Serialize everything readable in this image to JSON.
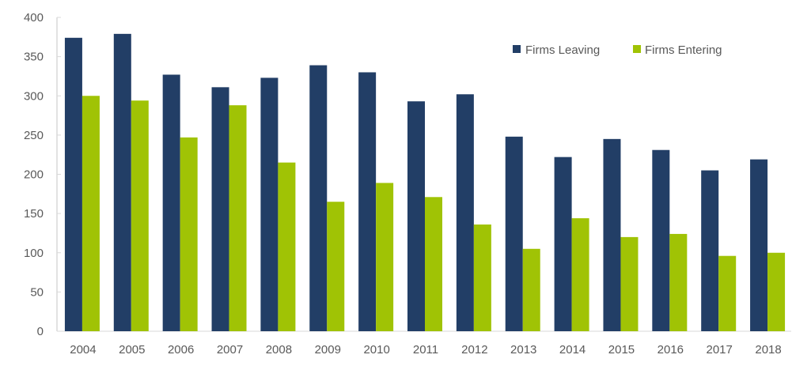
{
  "chart_data": {
    "type": "bar",
    "title": "",
    "xlabel": "",
    "ylabel": "",
    "categories": [
      "2004",
      "2005",
      "2006",
      "2007",
      "2008",
      "2009",
      "2010",
      "2011",
      "2012",
      "2013",
      "2014",
      "2015",
      "2016",
      "2017",
      "2018"
    ],
    "series": [
      {
        "name": "Firms Leaving",
        "color": "#223e66",
        "values": [
          374,
          379,
          327,
          311,
          323,
          339,
          330,
          293,
          302,
          248,
          222,
          245,
          231,
          205,
          219
        ]
      },
      {
        "name": "Firms Entering",
        "color": "#a0c305",
        "values": [
          300,
          294,
          247,
          288,
          215,
          165,
          189,
          171,
          136,
          105,
          144,
          120,
          124,
          96,
          100
        ]
      }
    ],
    "ylim": [
      0,
      400
    ],
    "yticks": [
      0,
      50,
      100,
      150,
      200,
      250,
      300,
      350,
      400
    ],
    "grid": false,
    "legend": "top-right"
  }
}
